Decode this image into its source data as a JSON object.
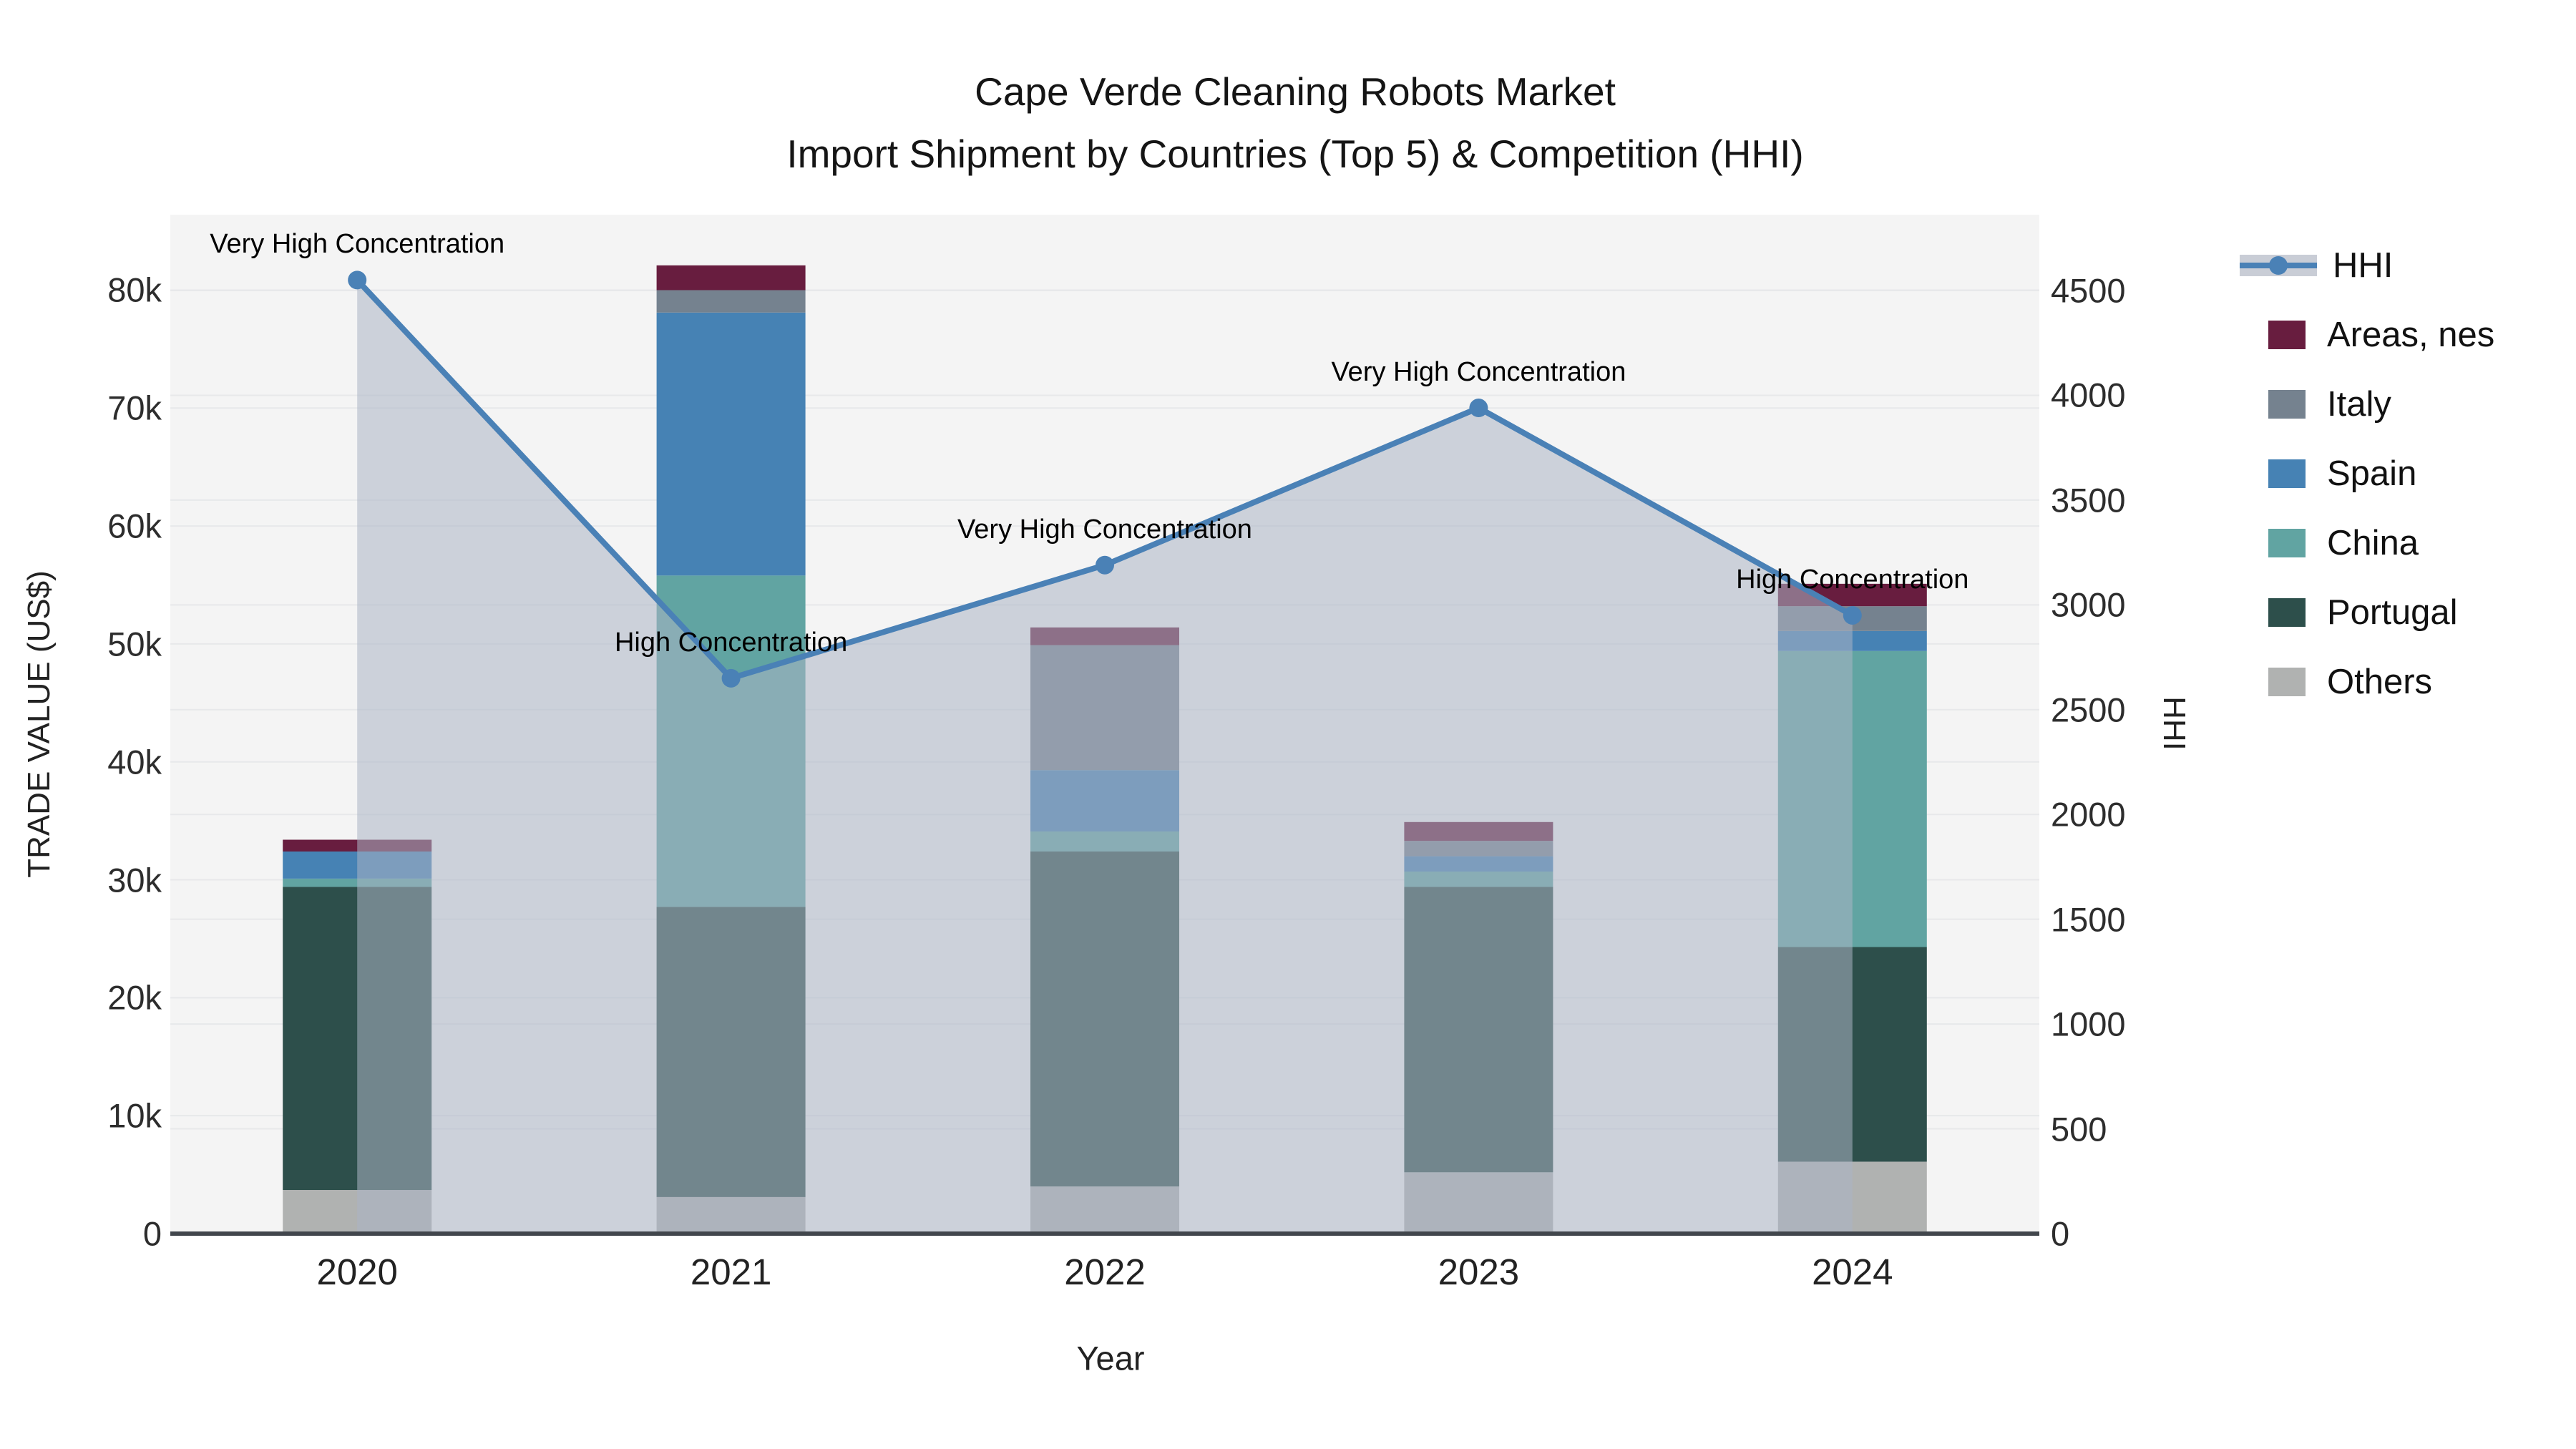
{
  "figure": {
    "title_line1": "Cape Verde Cleaning Robots Market",
    "title_line2": "Import Shipment by Countries (Top 5) & Competition (HHI)"
  },
  "axes": {
    "x_title": "Year",
    "y_left_title": "TRADE VALUE (US$)",
    "y_right_title": "HHI",
    "y_left_ticks": [
      {
        "label": "0",
        "value": 0
      },
      {
        "label": "10k",
        "value": 10000
      },
      {
        "label": "20k",
        "value": 20000
      },
      {
        "label": "30k",
        "value": 30000
      },
      {
        "label": "40k",
        "value": 40000
      },
      {
        "label": "50k",
        "value": 50000
      },
      {
        "label": "60k",
        "value": 60000
      },
      {
        "label": "70k",
        "value": 70000
      },
      {
        "label": "80k",
        "value": 80000
      }
    ],
    "y_right_ticks": [
      {
        "label": "0",
        "value": 0
      },
      {
        "label": "500",
        "value": 500
      },
      {
        "label": "1000",
        "value": 1000
      },
      {
        "label": "1500",
        "value": 1500
      },
      {
        "label": "2000",
        "value": 2000
      },
      {
        "label": "2500",
        "value": 2500
      },
      {
        "label": "3000",
        "value": 3000
      },
      {
        "label": "3500",
        "value": 3500
      },
      {
        "label": "4000",
        "value": 4000
      },
      {
        "label": "4500",
        "value": 4500
      }
    ]
  },
  "chart_data": {
    "type": "bar",
    "subtype": "stacked-bars-with-line",
    "title": "Cape Verde Cleaning Robots Market — Import Shipment by Countries (Top 5) & Competition (HHI)",
    "categories": [
      "2020",
      "2021",
      "2022",
      "2023",
      "2024"
    ],
    "xlabel": "Year",
    "ylabel": "TRADE VALUE (US$)",
    "ylabel_right": "HHI",
    "ylim_left": [
      0,
      86400
    ],
    "ylim_right": [
      0,
      4862
    ],
    "grid": true,
    "legend_position": "right",
    "series": [
      {
        "name": "Others",
        "color": "#b0b2b1",
        "values": [
          3700,
          3100,
          4000,
          5200,
          6100
        ]
      },
      {
        "name": "Portugal",
        "color": "#2d4f4b",
        "values": [
          25700,
          24600,
          28400,
          24200,
          18200
        ]
      },
      {
        "name": "China",
        "color": "#61a4a2",
        "values": [
          700,
          28100,
          1700,
          1300,
          25100
        ]
      },
      {
        "name": "Spain",
        "color": "#4682b4",
        "values": [
          2300,
          22300,
          5200,
          1300,
          1700
        ]
      },
      {
        "name": "Italy",
        "color": "#75828f",
        "values": [
          0,
          1900,
          10600,
          1300,
          2100
        ]
      },
      {
        "name": "Areas, nes",
        "color": "#681d3f",
        "values": [
          1000,
          2100,
          1500,
          1600,
          1900
        ]
      }
    ],
    "bar_totals": [
      33400,
      82100,
      51400,
      34900,
      55100
    ],
    "line_series": {
      "name": "HHI",
      "axis": "right",
      "color": "#4a81b6",
      "area_fill": "rgba(171,180,196,0.55)",
      "values": [
        4550,
        2650,
        3190,
        3940,
        2950
      ]
    },
    "annotations": [
      {
        "category": "2020",
        "text": "Very High Concentration"
      },
      {
        "category": "2021",
        "text": "High Concentration"
      },
      {
        "category": "2022",
        "text": "Very High Concentration"
      },
      {
        "category": "2023",
        "text": "Very High Concentration"
      },
      {
        "category": "2024",
        "text": "High Concentration"
      }
    ]
  },
  "legend": {
    "items": [
      {
        "label": "HHI",
        "type": "line",
        "color": "#4a81b6"
      },
      {
        "label": "Areas, nes",
        "type": "patch",
        "color": "#681d3f"
      },
      {
        "label": "Italy",
        "type": "patch",
        "color": "#75828f"
      },
      {
        "label": "Spain",
        "type": "patch",
        "color": "#4682b4"
      },
      {
        "label": "China",
        "type": "patch",
        "color": "#61a4a2"
      },
      {
        "label": "Portugal",
        "type": "patch",
        "color": "#2d4f4b"
      },
      {
        "label": "Others",
        "type": "patch",
        "color": "#b0b2b1"
      }
    ]
  },
  "colors": {
    "plot_background": "#f4f4f4",
    "gridline": "#e7e8ea",
    "baseline": "#41464c",
    "text": "#111111"
  }
}
